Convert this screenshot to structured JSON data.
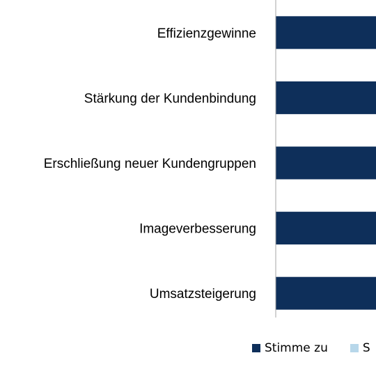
{
  "chart_data": {
    "type": "bar",
    "orientation": "horizontal",
    "stacked": true,
    "categories": [
      "Effizienzgewinne",
      "Stärkung der Kundenbindung",
      "Erschließung neuer Kundengruppen",
      "Imageverbesserung",
      "Umsatzsteigerung"
    ],
    "series": [
      {
        "name": "Stimme zu",
        "color": "#0e2f5a"
      },
      {
        "name": "S",
        "color": "#b7d7ea"
      }
    ],
    "title": "",
    "xlabel": "",
    "ylabel": "",
    "legend_position": "bottom",
    "grid": false
  }
}
